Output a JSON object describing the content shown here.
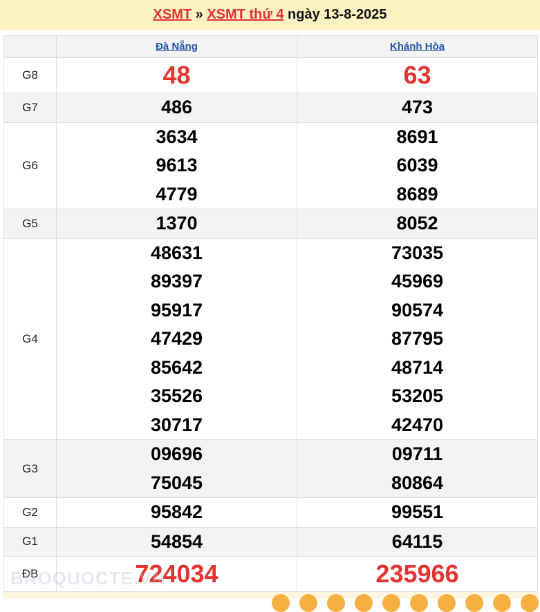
{
  "header": {
    "link1": "XSMT",
    "sep": "»",
    "link2": "XSMT thứ 4",
    "date": "ngày 13-8-2025"
  },
  "provinces": [
    "Đà Nẵng",
    "Khánh Hòa"
  ],
  "rows": [
    {
      "label": "G8",
      "a": [
        "48"
      ],
      "b": [
        "63"
      ]
    },
    {
      "label": "G7",
      "a": [
        "486"
      ],
      "b": [
        "473"
      ]
    },
    {
      "label": "G6",
      "a": [
        "3634",
        "9613",
        "4779"
      ],
      "b": [
        "8691",
        "6039",
        "8689"
      ]
    },
    {
      "label": "G5",
      "a": [
        "1370"
      ],
      "b": [
        "8052"
      ]
    },
    {
      "label": "G4",
      "a": [
        "48631",
        "89397",
        "95917",
        "47429",
        "85642",
        "35526",
        "30717"
      ],
      "b": [
        "73035",
        "45969",
        "90574",
        "87795",
        "48714",
        "53205",
        "42470"
      ]
    },
    {
      "label": "G3",
      "a": [
        "09696",
        "75045"
      ],
      "b": [
        "09711",
        "80864"
      ]
    },
    {
      "label": "G2",
      "a": [
        "95842"
      ],
      "b": [
        "99551"
      ]
    },
    {
      "label": "G1",
      "a": [
        "54854"
      ],
      "b": [
        "64115"
      ]
    },
    {
      "label": "ĐB",
      "a": [
        "724034"
      ],
      "b": [
        "235966"
      ]
    }
  ],
  "watermark": "BAOQUOCTE.VN",
  "colors": {
    "red": "#e3342f",
    "link": "#2255aa",
    "header_bg": "#fdf2c1"
  }
}
